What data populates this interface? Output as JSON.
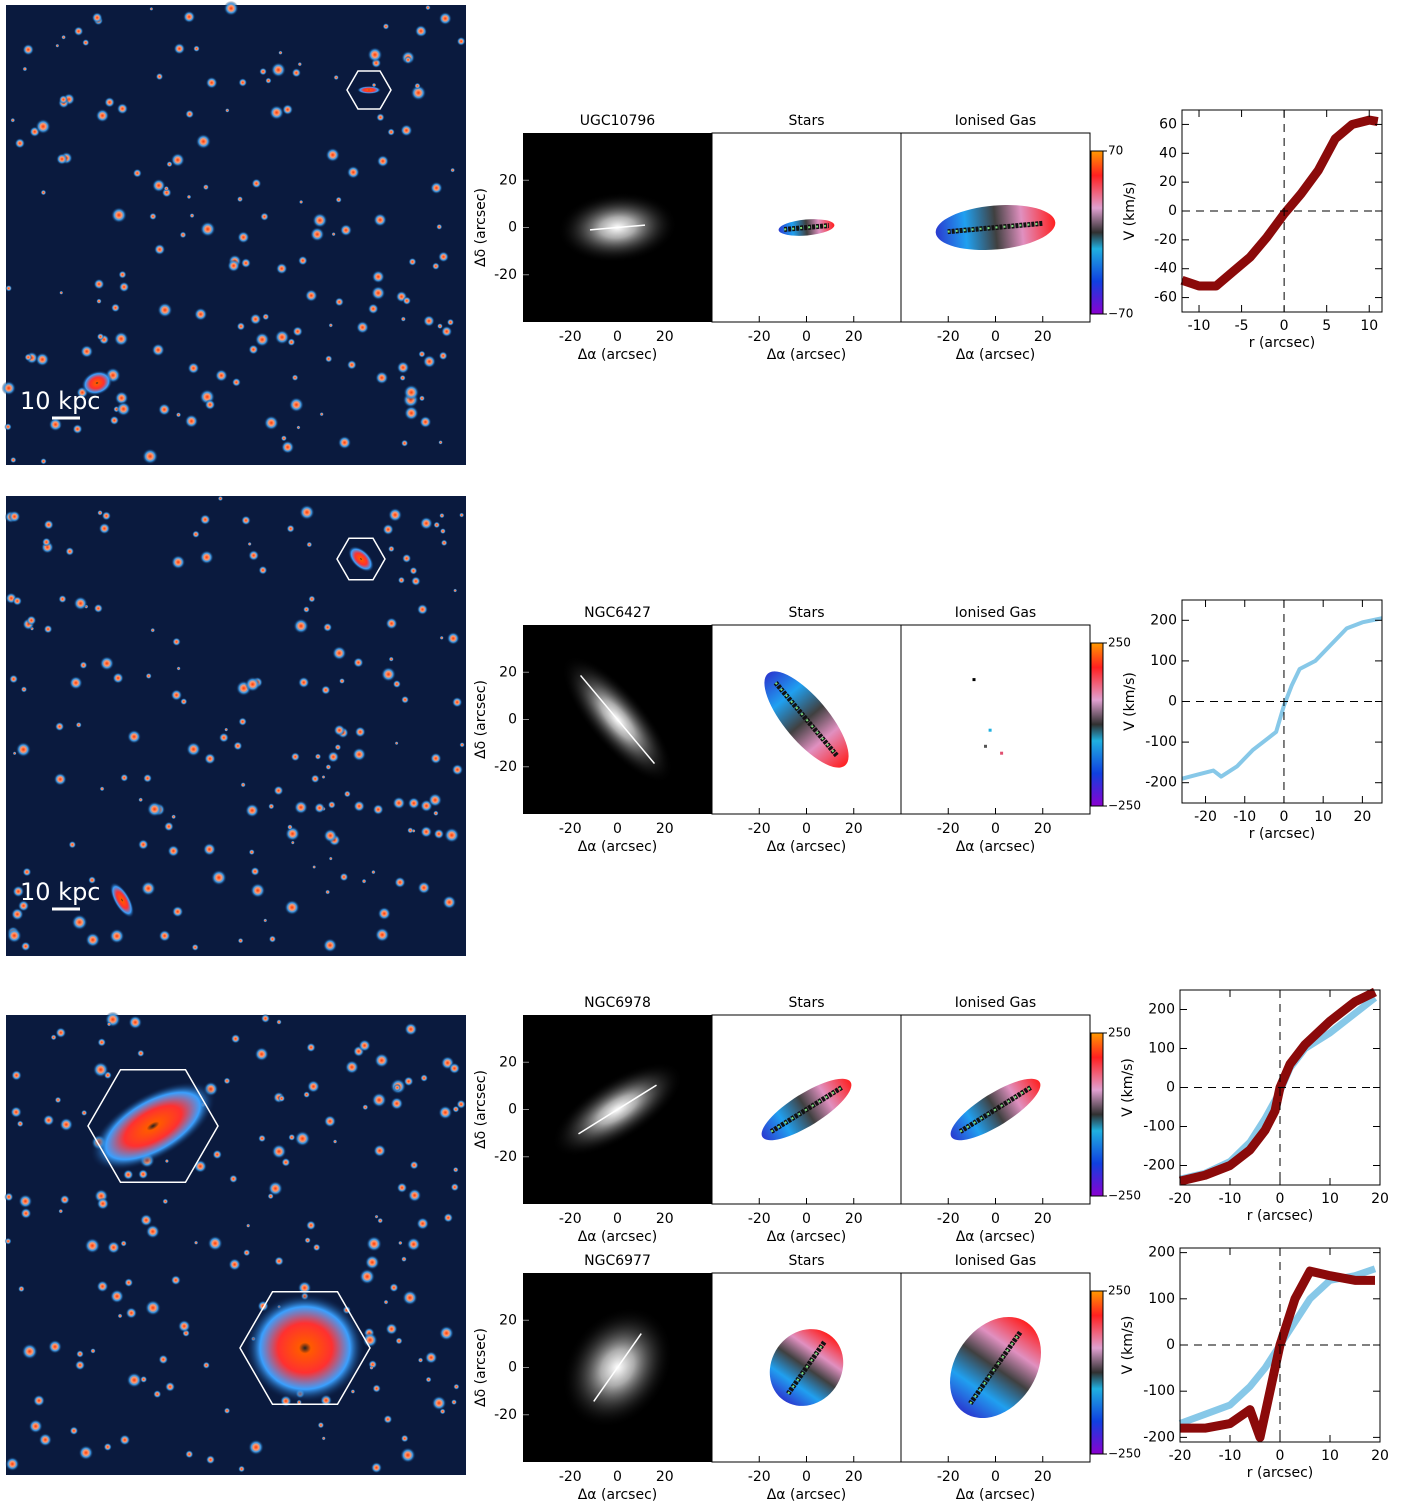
{
  "sky_images": [
    {
      "scale_label": "10 kpc"
    },
    {
      "scale_label": "10 kpc"
    },
    {}
  ],
  "map_axes": {
    "xlim": [
      -40,
      40
    ],
    "ylim": [
      -40,
      40
    ],
    "ticks": [
      -20,
      0,
      20
    ],
    "xlabel": "Δα (arcsec)",
    "ylabel": "Δδ (arcsec)"
  },
  "galaxies": [
    {
      "name": "UGC10796",
      "stars_title": "Stars",
      "gas_title": "Ionised Gas",
      "colorbar": {
        "lim": [
          -70,
          70
        ],
        "ticks": [
          70,
          {
            "value": -70,
            "label": "−70"
          }
        ]
      }
    },
    {
      "name": "NGC6427",
      "stars_title": "Stars",
      "gas_title": "Ionised Gas",
      "colorbar": {
        "lim": [
          -250,
          250
        ],
        "ticks": [
          250,
          {
            "value": -250,
            "label": "−250"
          }
        ]
      }
    },
    {
      "name": "NGC6978",
      "stars_title": "Stars",
      "gas_title": "Ionised Gas",
      "colorbar": {
        "lim": [
          -250,
          250
        ],
        "ticks": [
          250,
          {
            "value": -250,
            "label": "−250"
          }
        ]
      }
    },
    {
      "name": "NGC6977",
      "stars_title": "Stars",
      "gas_title": "Ionised Gas",
      "colorbar": {
        "lim": [
          -250,
          250
        ],
        "ticks": [
          250,
          {
            "value": -250,
            "label": "−250"
          }
        ]
      }
    }
  ],
  "chart_data": [
    {
      "type": "line",
      "xlabel": "r (arcsec)",
      "ylabel": "V (km/s)",
      "xlim": [
        -12,
        11.5
      ],
      "ylim": [
        -70,
        70
      ],
      "xticks": [
        -10,
        -5,
        0,
        5,
        10
      ],
      "yticks": [
        -60,
        -40,
        -20,
        0,
        20,
        40,
        60
      ],
      "series": [
        {
          "color": "#8b0a0a",
          "x": [
            -12,
            -10,
            -8,
            -6,
            -4,
            -2,
            0,
            2,
            4,
            6,
            8,
            10,
            11
          ],
          "values": [
            -48,
            -52,
            -52,
            -42,
            -32,
            -18,
            -2,
            12,
            28,
            50,
            60,
            63,
            62
          ]
        }
      ]
    },
    {
      "type": "line",
      "xlabel": "r (arcsec)",
      "ylabel": "V (km/s)",
      "xlim": [
        -26,
        25
      ],
      "ylim": [
        -250,
        250
      ],
      "xticks": [
        -20,
        -10,
        0,
        10,
        20
      ],
      "yticks": [
        -200,
        -100,
        0,
        100,
        200
      ],
      "series": [
        {
          "color": "#87c8e8",
          "x": [
            -26,
            -22,
            -18,
            -16,
            -12,
            -8,
            -4,
            -2,
            0,
            2,
            4,
            8,
            12,
            16,
            20,
            25
          ],
          "values": [
            -190,
            -180,
            -170,
            -185,
            -160,
            -120,
            -90,
            -75,
            -10,
            40,
            80,
            100,
            140,
            180,
            195,
            205
          ]
        }
      ]
    },
    {
      "type": "line",
      "xlabel": "r (arcsec)",
      "ylabel": "V (km/s)",
      "xlim": [
        -20,
        20
      ],
      "ylim": [
        -250,
        250
      ],
      "xticks": [
        -20,
        -10,
        0,
        10,
        20
      ],
      "yticks": [
        -200,
        -100,
        0,
        100,
        200
      ],
      "series": [
        {
          "color": "#87c8e8",
          "x": [
            -20,
            -15,
            -10,
            -6,
            -3,
            0,
            2,
            5,
            10,
            15,
            19
          ],
          "values": [
            -235,
            -220,
            -190,
            -140,
            -80,
            -10,
            50,
            100,
            140,
            190,
            230
          ]
        },
        {
          "color": "#8b0a0a",
          "x": [
            -20,
            -15,
            -10,
            -6,
            -3,
            -1,
            0,
            2,
            5,
            10,
            15,
            19
          ],
          "values": [
            -240,
            -225,
            -200,
            -160,
            -110,
            -60,
            0,
            60,
            110,
            170,
            220,
            245
          ]
        }
      ]
    },
    {
      "type": "line",
      "xlabel": "r (arcsec)",
      "ylabel": "V (km/s)",
      "xlim": [
        -20,
        20
      ],
      "ylim": [
        -210,
        210
      ],
      "xticks": [
        -20,
        -10,
        0,
        10,
        20
      ],
      "yticks": [
        -200,
        -100,
        0,
        100,
        200
      ],
      "series": [
        {
          "color": "#87c8e8",
          "x": [
            -20,
            -15,
            -10,
            -6,
            -3,
            0,
            3,
            6,
            10,
            15,
            19
          ],
          "values": [
            -170,
            -150,
            -130,
            -90,
            -50,
            0,
            50,
            100,
            140,
            150,
            165
          ]
        },
        {
          "color": "#8b0a0a",
          "x": [
            -20,
            -15,
            -10,
            -6,
            -4,
            -2,
            0,
            3,
            6,
            10,
            15,
            19
          ],
          "values": [
            -180,
            -180,
            -170,
            -140,
            -200,
            -100,
            0,
            100,
            160,
            150,
            140,
            140
          ]
        }
      ]
    }
  ]
}
